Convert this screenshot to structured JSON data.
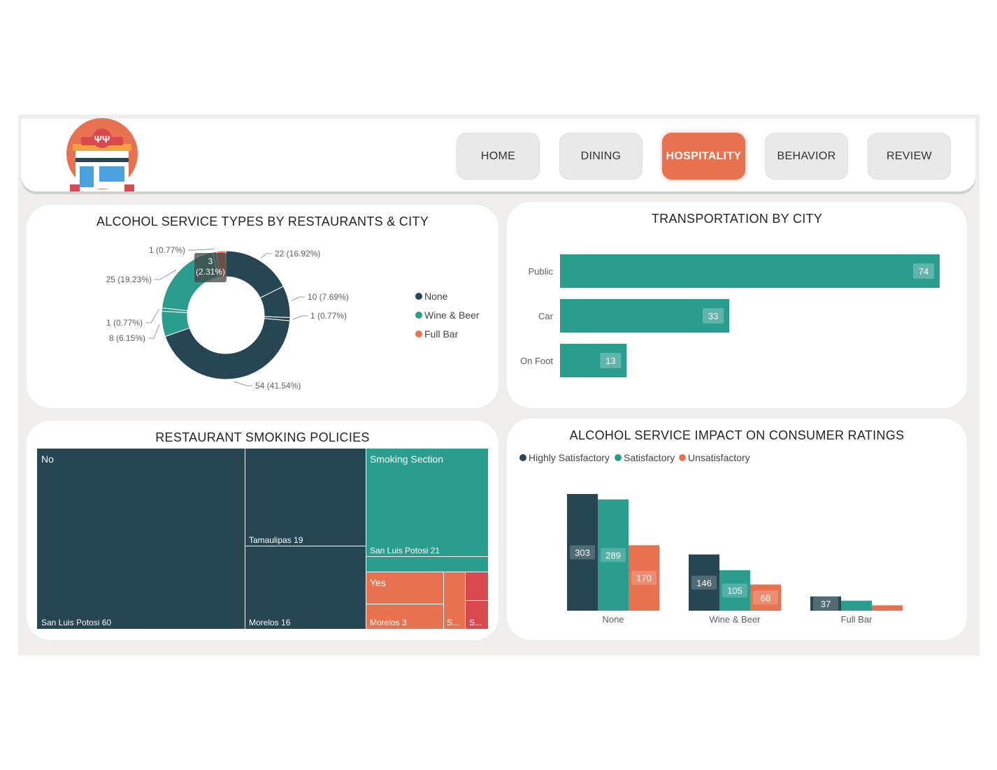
{
  "nav": {
    "items": [
      {
        "label": "HOME"
      },
      {
        "label": "DINING"
      },
      {
        "label": "HOSPITALITY",
        "active": true
      },
      {
        "label": "BEHAVIOR"
      },
      {
        "label": "REVIEW"
      }
    ]
  },
  "colors": {
    "dark": "#264653",
    "teal": "#2a9d8f",
    "orange": "#e8714f",
    "red": "#d9484d"
  },
  "donut": {
    "title": "ALCOHOL SERVICE TYPES BY RESTAURANTS & CITY",
    "legend": [
      "None",
      "Wine & Beer",
      "Full Bar"
    ]
  },
  "transport": {
    "title": "TRANSPORTATION BY CITY"
  },
  "treemap": {
    "title": "RESTAURANT SMOKING POLICIES",
    "labels": {
      "no": "No",
      "no_slp": "San Luis Potosi 60",
      "no_tam": "Tamaulipas 19",
      "no_mor": "Morelos 16",
      "smoking": "Smoking Section",
      "smoking_slp": "San Luis Potosi 21",
      "yes": "Yes",
      "yes_mor": "Morelos 3",
      "yes_s1": "S...",
      "yes_s2": "S..."
    }
  },
  "ratings": {
    "title": "ALCOHOL SERVICE IMPACT ON CONSUMER RATINGS",
    "legend": [
      "Highly Satisfactory",
      "Satisfactory",
      "Unsatisfactory"
    ]
  },
  "chart_data": [
    {
      "type": "pie",
      "title": "ALCOHOL SERVICE TYPES BY RESTAURANTS & CITY",
      "slices": [
        {
          "category": "None",
          "value": 22,
          "label": "22 (16.92%)"
        },
        {
          "category": "None",
          "value": 10,
          "label": "10 (7.69%)"
        },
        {
          "category": "None",
          "value": 1,
          "label": "1 (0.77%)"
        },
        {
          "category": "None",
          "value": 54,
          "label": "54 (41.54%)"
        },
        {
          "category": "Wine & Beer",
          "value": 8,
          "label": "8 (6.15%)"
        },
        {
          "category": "Wine & Beer",
          "value": 1,
          "label": "1 (0.77%)"
        },
        {
          "category": "Wine & Beer",
          "value": 25,
          "label": "25 (19.23%)"
        },
        {
          "category": "Wine & Beer",
          "value": 1,
          "label": "1 (0.77%)"
        },
        {
          "category": "Full Bar",
          "value": 3,
          "label": "3\n(2.31%)"
        }
      ],
      "legend": [
        "None",
        "Wine & Beer",
        "Full Bar"
      ],
      "legend_position": "right"
    },
    {
      "type": "bar",
      "orientation": "horizontal",
      "title": "TRANSPORTATION BY CITY",
      "categories": [
        "Public",
        "Car",
        "On Foot"
      ],
      "values": [
        74,
        33,
        13
      ],
      "xlim": [
        0,
        74
      ]
    },
    {
      "type": "table",
      "subtype": "treemap",
      "title": "RESTAURANT SMOKING POLICIES",
      "groups": [
        {
          "name": "No",
          "items": [
            {
              "name": "San Luis Potosi",
              "value": 60
            },
            {
              "name": "Tamaulipas",
              "value": 19
            },
            {
              "name": "Morelos",
              "value": 16
            }
          ]
        },
        {
          "name": "Smoking Section",
          "items": [
            {
              "name": "San Luis Potosi",
              "value": 21
            }
          ]
        },
        {
          "name": "Yes",
          "items": [
            {
              "name": "Morelos",
              "value": 3
            },
            {
              "name": "S...",
              "value": null
            },
            {
              "name": "S...",
              "value": null
            }
          ]
        }
      ]
    },
    {
      "type": "bar",
      "title": "ALCOHOL SERVICE IMPACT ON CONSUMER RATINGS",
      "categories": [
        "None",
        "Wine & Beer",
        "Full Bar"
      ],
      "series": [
        {
          "name": "Highly Satisfactory",
          "values": [
            303,
            146,
            37
          ]
        },
        {
          "name": "Satisfactory",
          "values": [
            289,
            105,
            26
          ]
        },
        {
          "name": "Unsatisfactory",
          "values": [
            170,
            68,
            14
          ]
        }
      ],
      "ylim": [
        0,
        303
      ],
      "legend_position": "top-left"
    }
  ]
}
